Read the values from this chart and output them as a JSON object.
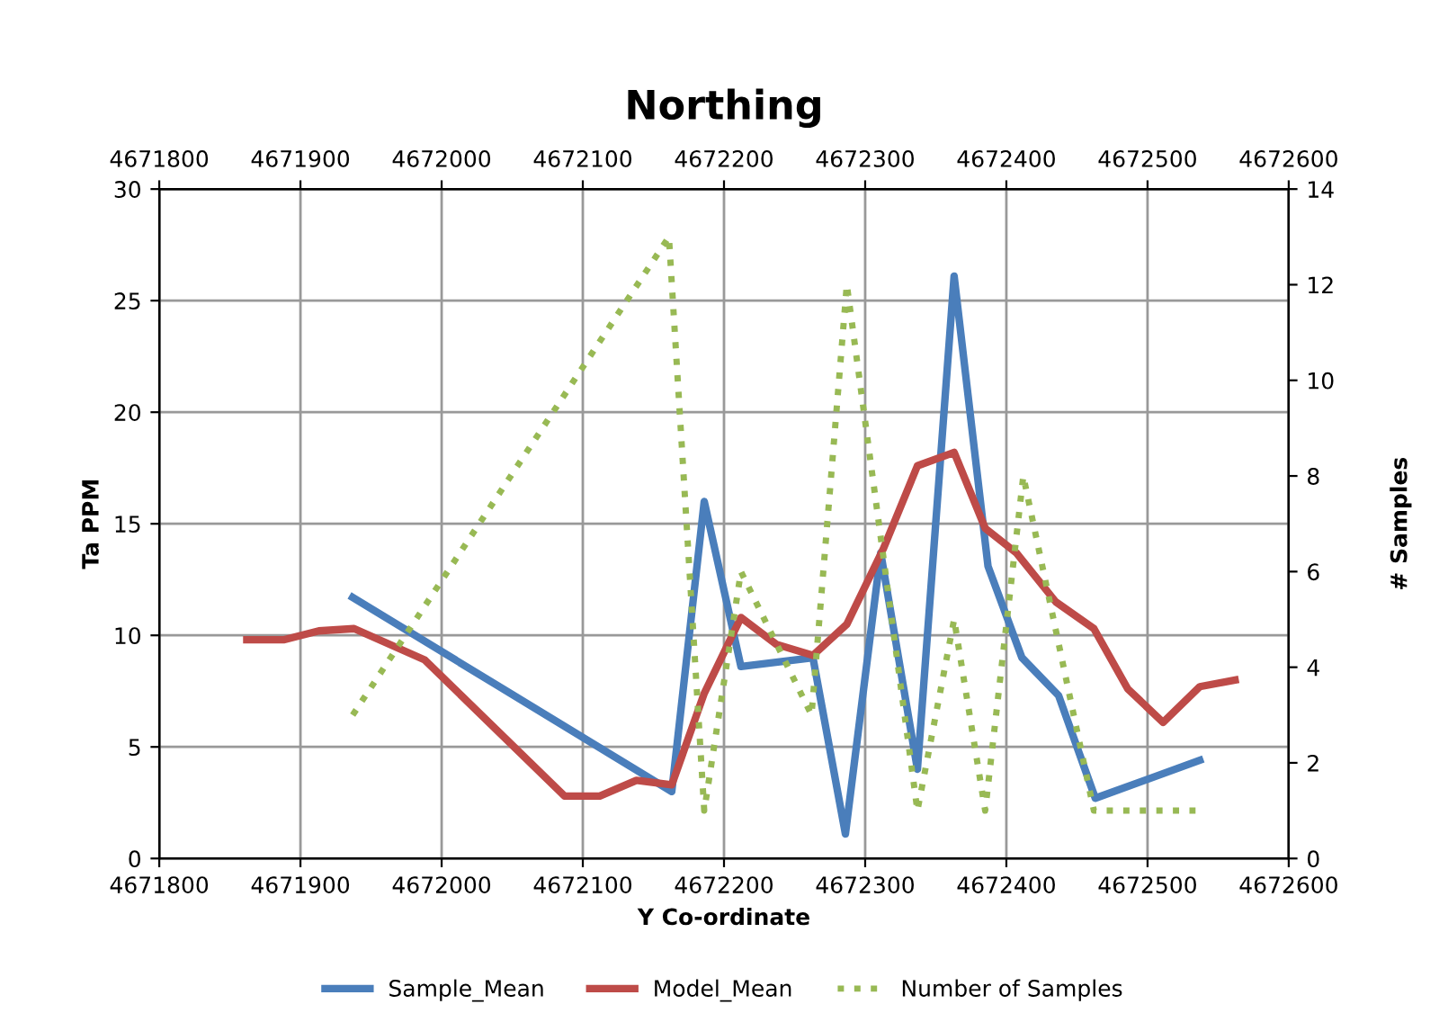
{
  "chart_data": {
    "type": "line",
    "title": "Northing",
    "xlabel": "Y Co-ordinate",
    "ylabel": "Ta PPM",
    "y2label": "# Samples",
    "xlim": [
      4671800,
      4672600
    ],
    "xticks": [
      4671800,
      4671900,
      4672000,
      4672100,
      4672200,
      4672300,
      4672400,
      4672500,
      4672600
    ],
    "x2lim": [
      4671800,
      4672600
    ],
    "x2ticks": [
      4671800,
      4671900,
      4672000,
      4672100,
      4672200,
      4672300,
      4672400,
      4672500,
      4672600
    ],
    "ylim": [
      0,
      30
    ],
    "yticks": [
      0,
      5,
      10,
      15,
      20,
      25,
      30
    ],
    "y2lim": [
      0,
      14
    ],
    "y2ticks": [
      0,
      2,
      4,
      6,
      8,
      10,
      12,
      14
    ],
    "grid": true,
    "legend": "bottom",
    "marker": "none",
    "series": [
      {
        "name": "Sample_Mean",
        "color": "#4a7ebb",
        "line_style": "solid",
        "x": [
          4671937,
          4672163,
          4672186,
          4672212,
          4672263,
          4672286,
          4672311,
          4672337,
          4672363,
          4672387,
          4672411,
          4672437,
          4672463,
          4672537
        ],
        "values": [
          11.7,
          3.0,
          16.0,
          8.6,
          9.0,
          1.1,
          13.7,
          4.0,
          26.1,
          13.1,
          9.0,
          7.3,
          2.7,
          4.4
        ]
      },
      {
        "name": "Model_Mean",
        "color": "#be4b48",
        "line_style": "solid",
        "x": [
          4671862,
          4671888,
          4671913,
          4671938,
          4671988,
          4672087,
          4672112,
          4672138,
          4672163,
          4672186,
          4672212,
          4672237,
          4672263,
          4672287,
          4672313,
          4672337,
          4672363,
          4672385,
          4672407,
          4672435,
          4672462,
          4672486,
          4672511,
          4672537,
          4672562
        ],
        "values": [
          9.8,
          9.8,
          10.2,
          10.3,
          8.9,
          2.8,
          2.8,
          3.5,
          3.3,
          7.4,
          10.8,
          9.6,
          9.1,
          10.5,
          13.9,
          17.6,
          18.2,
          14.8,
          13.7,
          11.5,
          10.3,
          7.6,
          6.1,
          7.7,
          8.0
        ]
      },
      {
        "name": "Number of Samples",
        "color": "#98b954",
        "line_style": "dotted",
        "axis": "y2",
        "x": [
          4671937,
          4672161,
          4672186,
          4672212,
          4672262,
          4672287,
          4672337,
          4672363,
          4672385,
          4672412,
          4672462,
          4672534
        ],
        "values": [
          3,
          13,
          1,
          6,
          3,
          12,
          1,
          5,
          1,
          8,
          1,
          1
        ]
      }
    ]
  }
}
